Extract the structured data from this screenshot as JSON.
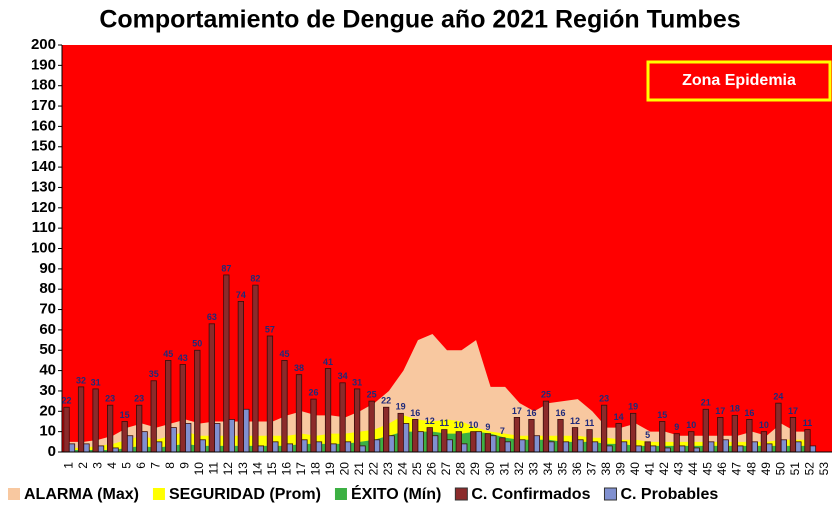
{
  "chart_data": {
    "type": "bar",
    "title": "Comportamiento de Dengue año  2021 Región Tumbes",
    "annotation": "Zona Epidemia",
    "background_color": "#ff0000",
    "legend": "bottom",
    "data_labels": true,
    "categories": [
      "1",
      "2",
      "3",
      "4",
      "5",
      "6",
      "7",
      "8",
      "9",
      "10",
      "11",
      "12",
      "13",
      "14",
      "15",
      "16",
      "17",
      "18",
      "19",
      "20",
      "21",
      "22",
      "23",
      "24",
      "25",
      "26",
      "27",
      "28",
      "29",
      "30",
      "31",
      "32",
      "33",
      "34",
      "35",
      "36",
      "37",
      "38",
      "39",
      "40",
      "41",
      "42",
      "43",
      "44",
      "45",
      "46",
      "47",
      "48",
      "49",
      "50",
      "51",
      "52",
      "53"
    ],
    "series": [
      {
        "name": "ALARMA (Max)",
        "kind": "area",
        "color": "#f8c8a0",
        "values": [
          5,
          5,
          6,
          8,
          12,
          14,
          12,
          14,
          16,
          14,
          15,
          15,
          15,
          15,
          15,
          18,
          20,
          18,
          18,
          17,
          20,
          24,
          30,
          40,
          55,
          58,
          50,
          50,
          55,
          32,
          32,
          24,
          20,
          24,
          25,
          26,
          20,
          12,
          12,
          14,
          10,
          10,
          8,
          8,
          8,
          8,
          8,
          10,
          8,
          14,
          10,
          10,
          null
        ]
      },
      {
        "name": "SEGURIDAD (Prom)",
        "kind": "area",
        "color": "#ffff00",
        "values": [
          2,
          2,
          3,
          4,
          6,
          8,
          6,
          8,
          10,
          8,
          8,
          8,
          8,
          8,
          8,
          8,
          9,
          8,
          9,
          9,
          10,
          11,
          14,
          18,
          16,
          15,
          16,
          15,
          12,
          10,
          9,
          8,
          8,
          8,
          8,
          8,
          7,
          7,
          6,
          6,
          5,
          5,
          5,
          5,
          5,
          5,
          5,
          5,
          5,
          6,
          6,
          6,
          null
        ]
      },
      {
        "name": "ÉXITO (Mín)",
        "kind": "area",
        "color": "#3cb043",
        "values": [
          1,
          1,
          1,
          1,
          2,
          3,
          2,
          3,
          4,
          3,
          3,
          3,
          3,
          3,
          3,
          3,
          4,
          4,
          4,
          4,
          5,
          6,
          8,
          10,
          10,
          10,
          9,
          9,
          10,
          9,
          7,
          6,
          6,
          6,
          5,
          5,
          5,
          4,
          4,
          3,
          3,
          3,
          3,
          3,
          3,
          3,
          3,
          3,
          3,
          3,
          3,
          3,
          null
        ]
      },
      {
        "name": "C. Confirmados",
        "kind": "bar",
        "color": "#8b2b2b",
        "values": [
          22,
          32,
          31,
          23,
          15,
          23,
          35,
          45,
          43,
          50,
          63,
          87,
          74,
          82,
          57,
          45,
          38,
          26,
          41,
          34,
          31,
          25,
          22,
          19,
          16,
          12,
          11,
          10,
          10,
          9,
          7,
          17,
          16,
          25,
          16,
          12,
          11,
          23,
          14,
          19,
          5,
          15,
          9,
          10,
          21,
          17,
          18,
          16,
          10,
          24,
          17,
          11,
          null
        ]
      },
      {
        "name": "C. Probables",
        "kind": "bar",
        "color": "#8090d0",
        "values": [
          4,
          4,
          3,
          2,
          8,
          10,
          5,
          12,
          14,
          6,
          14,
          16,
          21,
          3,
          5,
          4,
          6,
          5,
          4,
          5,
          3,
          6,
          8,
          14,
          10,
          8,
          6,
          4,
          10,
          8,
          5,
          6,
          8,
          5,
          5,
          6,
          5,
          3,
          5,
          3,
          3,
          2,
          3,
          2,
          5,
          6,
          3,
          5,
          4,
          6,
          5,
          3,
          null
        ]
      }
    ],
    "ylim": [
      0,
      200
    ],
    "yticks": [
      0,
      10,
      20,
      30,
      40,
      50,
      60,
      70,
      80,
      90,
      100,
      110,
      120,
      130,
      140,
      150,
      160,
      170,
      180,
      190,
      200
    ]
  }
}
